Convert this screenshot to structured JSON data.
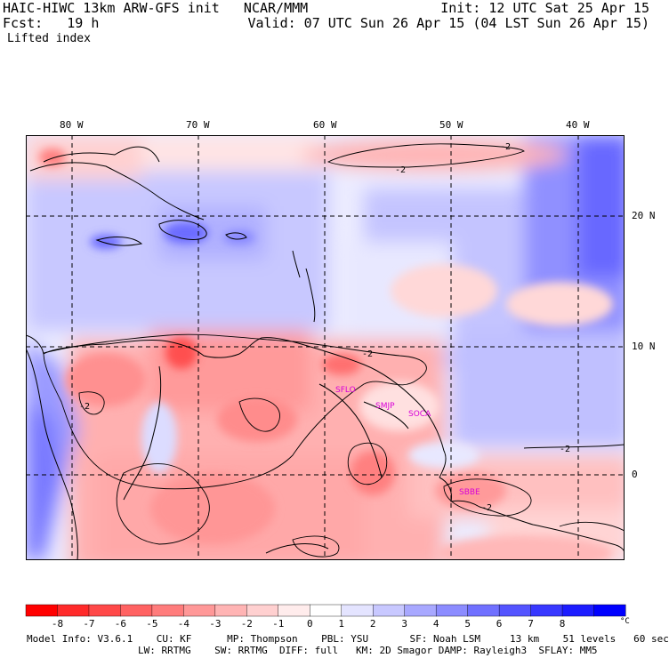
{
  "header": {
    "title_left": "HAIC-HIWC 13km ARW-GFS init   NCAR/MMM",
    "init": "Init: 12 UTC Sat 25 Apr 15",
    "fcst": "Fcst:   19 h",
    "valid": "Valid: 07 UTC Sun 26 Apr 15 (04 LST Sun 26 Apr 15)",
    "field": "Lifted index"
  },
  "map": {
    "lon_labels": [
      "80 W",
      "70 W",
      "60 W",
      "50 W",
      "40 W"
    ],
    "lat_labels": [
      "20 N",
      "10 N",
      "0"
    ],
    "contour_label": "-2",
    "stations": [
      "SFLO",
      "SMJP",
      "SOCA",
      "SBBE"
    ]
  },
  "colorbar": {
    "labels": [
      "-8",
      "-7",
      "-6",
      "-5",
      "-4",
      "-3",
      "-2",
      "-1",
      "0",
      "1",
      "2",
      "3",
      "4",
      "5",
      "6",
      "7",
      "8"
    ],
    "unit": "°C",
    "colors": [
      "#ff0000",
      "#ff2a2a",
      "#ff4848",
      "#ff6262",
      "#ff7c7c",
      "#ff9898",
      "#ffb4b4",
      "#ffd0d0",
      "#ffecec",
      "#ffffff",
      "#e4e4ff",
      "#c8c8ff",
      "#a8a8ff",
      "#8c8cff",
      "#7070ff",
      "#5454ff",
      "#3838ff",
      "#1c1cff",
      "#0000ff"
    ]
  },
  "footer": {
    "line1": "Model Info: V3.6.1    CU: KF      MP: Thompson    PBL: YSU       SF: Noah LSM     13 km    51 levels   60 sec",
    "line2": "LW: RRTMG    SW: RRTMG  DIFF: full   KM: 2D Smagor DAMP: Rayleigh3  SFLAY: MM5"
  }
}
